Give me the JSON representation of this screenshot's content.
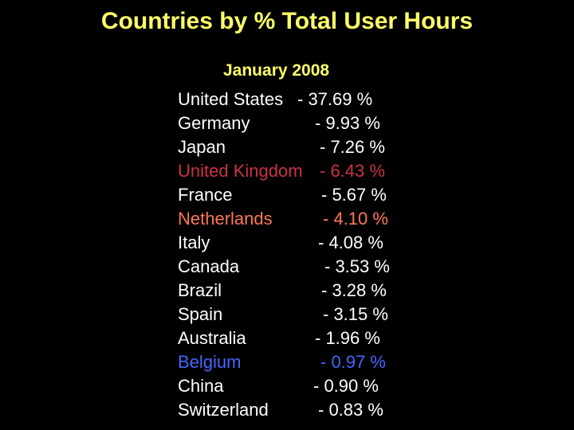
{
  "title": "Countries by % Total User Hours",
  "subtitle": "January 2008",
  "colors": {
    "background": "#000000",
    "title": "#ffff66",
    "default_text": "#ffffff",
    "united_kingdom": "#cc3344",
    "netherlands": "#ff7755",
    "belgium": "#4466ff"
  },
  "rows": [
    {
      "country": "United States",
      "value": "-   37.69 %"
    },
    {
      "country": "Germany",
      "value": "-  9.93 %"
    },
    {
      "country": "Japan",
      "value": "-  7.26 %"
    },
    {
      "country": "United Kingdom",
      "value": "- 6.43 %"
    },
    {
      "country": "France",
      "value": "- 5.67 %"
    },
    {
      "country": "Netherlands",
      "value": "- 4.10 %"
    },
    {
      "country": "Italy",
      "value": "- 4.08 %"
    },
    {
      "country": "Canada",
      "value": "- 3.53 %"
    },
    {
      "country": "Brazil",
      "value": "- 3.28 %"
    },
    {
      "country": "Spain",
      "value": "- 3.15 %"
    },
    {
      "country": "Australia",
      "value": "-  1.96 %"
    },
    {
      "country": "Belgium",
      "value": "- 0.97 %"
    },
    {
      "country": "China",
      "value": "-  0.90 %"
    },
    {
      "country": "Switzerland",
      "value": "-  0.83 %"
    }
  ]
}
